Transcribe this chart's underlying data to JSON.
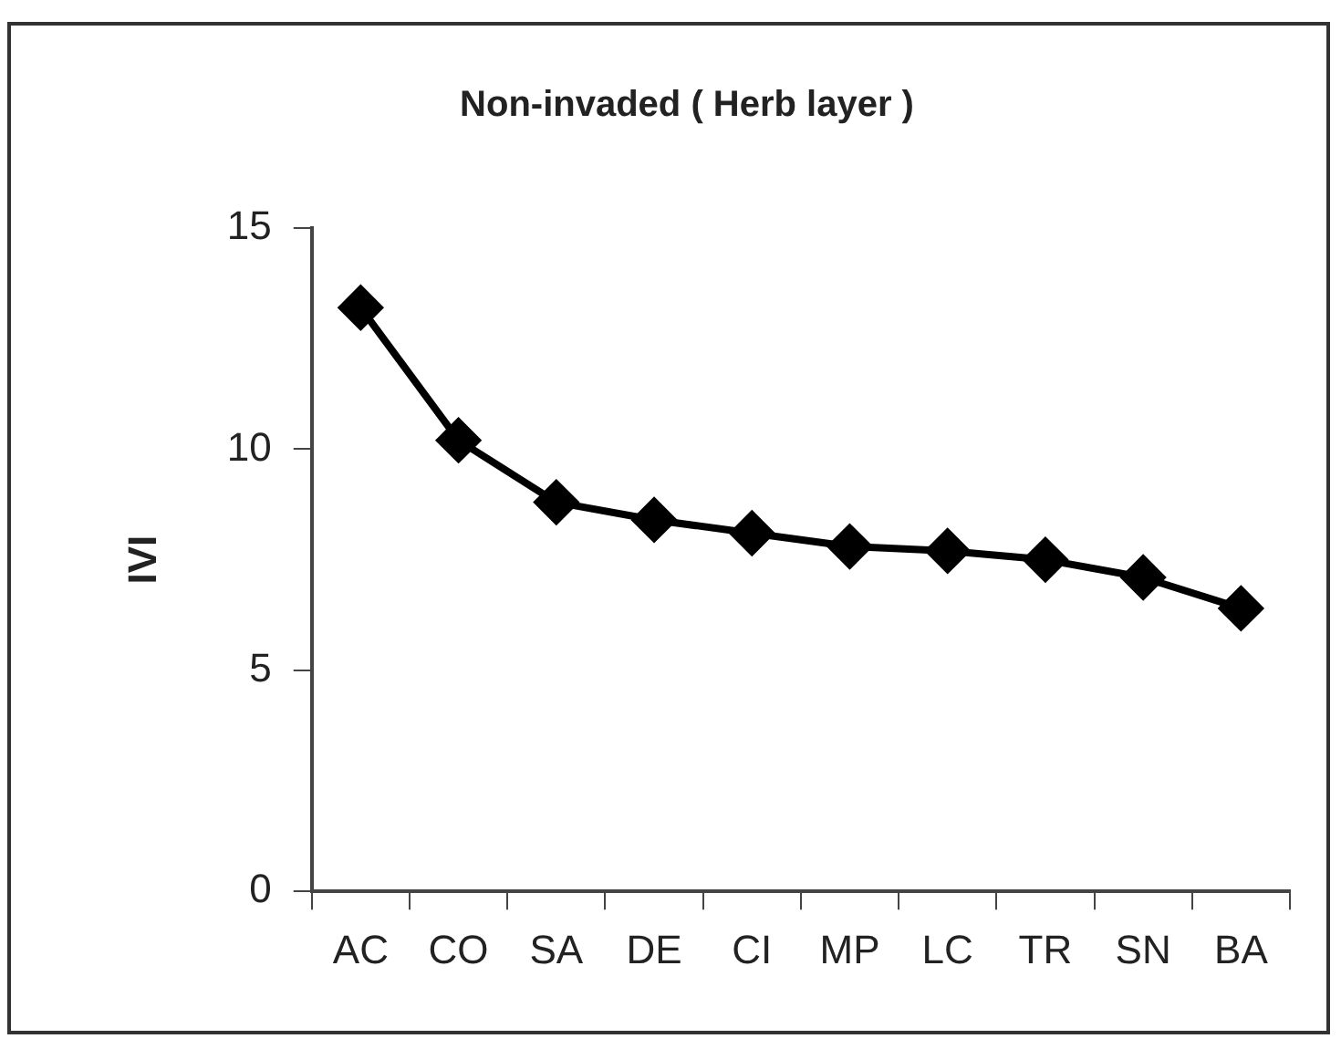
{
  "chart_data": {
    "type": "line",
    "title": "Non-invaded ( Herb layer )",
    "ylabel": "IVI",
    "categories": [
      "AC",
      "CO",
      "SA",
      "DE",
      "CI",
      "MP",
      "LC",
      "TR",
      "SN",
      "BA"
    ],
    "series": [
      {
        "color": "#000000",
        "values": [
          13.2,
          10.2,
          8.8,
          8.4,
          8.1,
          7.8,
          7.7,
          7.5,
          7.1,
          6.4
        ]
      }
    ],
    "ylim": [
      0,
      15
    ],
    "yticks": [
      0,
      5,
      10,
      15
    ],
    "grid": false,
    "legend": false,
    "marker": "diamond",
    "line_style": "solid"
  }
}
